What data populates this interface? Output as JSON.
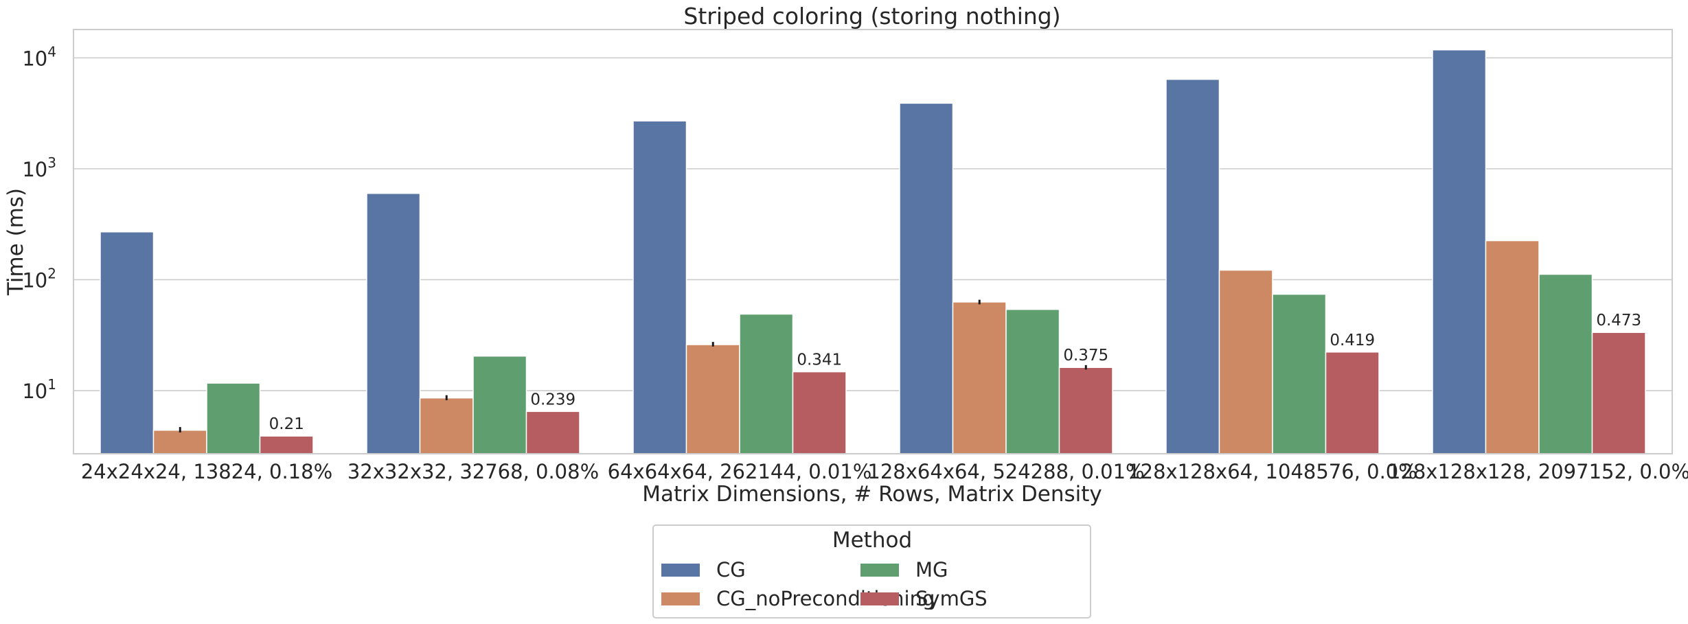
{
  "chart_data": {
    "type": "bar",
    "title": "Striped coloring (storing nothing)",
    "xlabel": "Matrix Dimensions, # Rows, Matrix Density",
    "ylabel": "Time (ms)",
    "yscale": "log",
    "ylim": [
      2.7,
      18000
    ],
    "yticks": [
      10,
      100,
      1000,
      10000
    ],
    "grid": true,
    "legend_title": "Method",
    "legend_position": "bottom-center",
    "categories": [
      "24x24x24, 13824, 0.18%",
      "32x32x32, 32768, 0.08%",
      "64x64x64, 262144, 0.01%",
      "128x64x64, 524288, 0.01%",
      "128x128x64, 1048576, 0.0%",
      "128x128x128, 2097152, 0.0%"
    ],
    "series": [
      {
        "name": "CG",
        "color": "#5975a4",
        "values": [
          270,
          600,
          2700,
          3900,
          6400,
          11800
        ]
      },
      {
        "name": "CG_noPreconditioning",
        "color": "#cc8963",
        "values": [
          4.4,
          8.6,
          26,
          63,
          122,
          225
        ]
      },
      {
        "name": "MG",
        "color": "#5f9e6e",
        "values": [
          11.7,
          20.5,
          49,
          54,
          74,
          112
        ]
      },
      {
        "name": "SymGS",
        "color": "#b55d60",
        "values": [
          3.9,
          6.5,
          14.8,
          16.2,
          22.3,
          33.5
        ]
      }
    ],
    "annotations": [
      {
        "category_index": 0,
        "series": "SymGS",
        "text": "0.21"
      },
      {
        "category_index": 1,
        "series": "SymGS",
        "text": "0.239"
      },
      {
        "category_index": 2,
        "series": "SymGS",
        "text": "0.341"
      },
      {
        "category_index": 3,
        "series": "SymGS",
        "text": "0.375"
      },
      {
        "category_index": 4,
        "series": "SymGS",
        "text": "0.419"
      },
      {
        "category_index": 5,
        "series": "SymGS",
        "text": "0.473"
      }
    ],
    "error_bars": [
      {
        "category_index": 0,
        "series": "CG_noPreconditioning",
        "low": 4.2,
        "high": 4.7
      },
      {
        "category_index": 1,
        "series": "CG_noPreconditioning",
        "low": 8.2,
        "high": 9.1
      },
      {
        "category_index": 2,
        "series": "CG_noPreconditioning",
        "low": 25,
        "high": 27.5
      },
      {
        "category_index": 3,
        "series": "CG_noPreconditioning",
        "low": 60,
        "high": 66
      },
      {
        "category_index": 3,
        "series": "SymGS",
        "low": 15.5,
        "high": 17
      }
    ]
  }
}
